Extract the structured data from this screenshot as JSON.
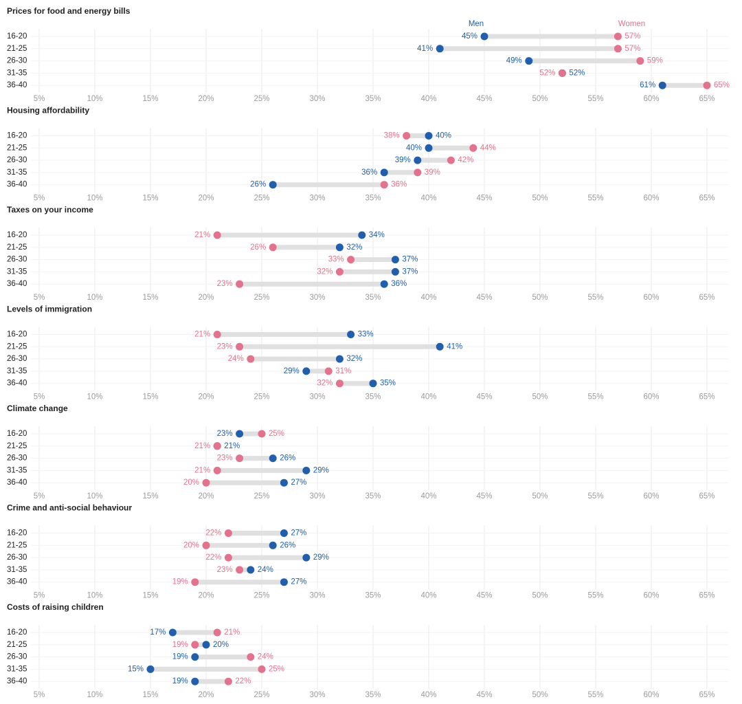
{
  "chart_data": [
    {
      "type": "dumbbell",
      "title": "Prices for food and energy bills",
      "categories": [
        "16-20",
        "21-25",
        "26-30",
        "31-35",
        "36-40"
      ],
      "series": [
        {
          "name": "Men",
          "color": "#1f5fad",
          "values": [
            45,
            41,
            49,
            52,
            61
          ],
          "value_labels": [
            "45%",
            "41%",
            "49%",
            "52%",
            "61%"
          ]
        },
        {
          "name": "Women",
          "color": "#e5728c",
          "values": [
            57,
            57,
            59,
            52,
            65
          ],
          "value_labels": [
            "57%",
            "57%",
            "59%",
            "52%",
            "65%"
          ]
        }
      ],
      "xlim": [
        5,
        65
      ],
      "xticks": [
        {
          "value": 5,
          "label": "5%"
        },
        {
          "value": 10,
          "label": "10%"
        },
        {
          "value": 15,
          "label": "15%"
        },
        {
          "value": 20,
          "label": "20%"
        },
        {
          "value": 25,
          "label": "25%"
        },
        {
          "value": 30,
          "label": "30%"
        },
        {
          "value": 35,
          "label": "35%"
        },
        {
          "value": 40,
          "label": "40%"
        },
        {
          "value": 45,
          "label": "45%"
        },
        {
          "value": 50,
          "label": "50%"
        },
        {
          "value": 55,
          "label": "55%"
        },
        {
          "value": 60,
          "label": "60%"
        },
        {
          "value": 65,
          "label": "65%"
        }
      ],
      "grid": true
    },
    {
      "type": "dumbbell",
      "title": "Housing affordability",
      "categories": [
        "16-20",
        "21-25",
        "26-30",
        "31-35",
        "36-40"
      ],
      "series": [
        {
          "color": "#1f5fad",
          "values": [
            40,
            40,
            39,
            36,
            26
          ],
          "value_labels": [
            "40%",
            "40%",
            "39%",
            "36%",
            "26%"
          ]
        },
        {
          "color": "#e5728c",
          "values": [
            38,
            44,
            42,
            39,
            36
          ],
          "value_labels": [
            "38%",
            "44%",
            "42%",
            "39%",
            "36%"
          ]
        }
      ],
      "xlim": [
        5,
        65
      ],
      "xticks": [
        {
          "value": 5,
          "label": "5%"
        },
        {
          "value": 10,
          "label": "10%"
        },
        {
          "value": 15,
          "label": "15%"
        },
        {
          "value": 20,
          "label": "20%"
        },
        {
          "value": 25,
          "label": "25%"
        },
        {
          "value": 30,
          "label": "30%"
        },
        {
          "value": 35,
          "label": "35%"
        },
        {
          "value": 40,
          "label": "40%"
        },
        {
          "value": 45,
          "label": "45%"
        },
        {
          "value": 50,
          "label": "50%"
        },
        {
          "value": 55,
          "label": "55%"
        },
        {
          "value": 60,
          "label": "60%"
        },
        {
          "value": 65,
          "label": "65%"
        }
      ],
      "grid": true
    },
    {
      "type": "dumbbell",
      "title": "Taxes on your income",
      "categories": [
        "16-20",
        "21-25",
        "26-30",
        "31-35",
        "36-40"
      ],
      "series": [
        {
          "color": "#1f5fad",
          "values": [
            34,
            32,
            37,
            37,
            36
          ],
          "value_labels": [
            "34%",
            "32%",
            "37%",
            "37%",
            "36%"
          ]
        },
        {
          "color": "#e5728c",
          "values": [
            21,
            26,
            33,
            32,
            23
          ],
          "value_labels": [
            "21%",
            "26%",
            "33%",
            "32%",
            "23%"
          ]
        }
      ],
      "xlim": [
        5,
        65
      ],
      "xticks": [
        {
          "value": 5,
          "label": "5%"
        },
        {
          "value": 10,
          "label": "10%"
        },
        {
          "value": 15,
          "label": "15%"
        },
        {
          "value": 20,
          "label": "20%"
        },
        {
          "value": 25,
          "label": "25%"
        },
        {
          "value": 30,
          "label": "30%"
        },
        {
          "value": 35,
          "label": "35%"
        },
        {
          "value": 40,
          "label": "40%"
        },
        {
          "value": 45,
          "label": "45%"
        },
        {
          "value": 50,
          "label": "50%"
        },
        {
          "value": 55,
          "label": "55%"
        },
        {
          "value": 60,
          "label": "60%"
        },
        {
          "value": 65,
          "label": "65%"
        }
      ],
      "grid": true
    },
    {
      "type": "dumbbell",
      "title": "Levels of immigration",
      "categories": [
        "16-20",
        "21-25",
        "26-30",
        "31-35",
        "36-40"
      ],
      "series": [
        {
          "color": "#1f5fad",
          "values": [
            33,
            41,
            32,
            29,
            35
          ],
          "value_labels": [
            "33%",
            "41%",
            "32%",
            "29%",
            "35%"
          ]
        },
        {
          "color": "#e5728c",
          "values": [
            21,
            23,
            24,
            31,
            32
          ],
          "value_labels": [
            "21%",
            "23%",
            "24%",
            "31%",
            "32%"
          ]
        }
      ],
      "xlim": [
        5,
        65
      ],
      "xticks": [
        {
          "value": 5,
          "label": "5%"
        },
        {
          "value": 10,
          "label": "10%"
        },
        {
          "value": 15,
          "label": "15%"
        },
        {
          "value": 20,
          "label": "20%"
        },
        {
          "value": 25,
          "label": "25%"
        },
        {
          "value": 30,
          "label": "30%"
        },
        {
          "value": 35,
          "label": "35%"
        },
        {
          "value": 40,
          "label": "40%"
        },
        {
          "value": 45,
          "label": "45%"
        },
        {
          "value": 50,
          "label": "50%"
        },
        {
          "value": 55,
          "label": "55%"
        },
        {
          "value": 60,
          "label": "60%"
        },
        {
          "value": 65,
          "label": "65%"
        }
      ],
      "grid": true
    },
    {
      "type": "dumbbell",
      "title": "Climate change",
      "categories": [
        "16-20",
        "21-25",
        "26-30",
        "31-35",
        "36-40"
      ],
      "series": [
        {
          "color": "#1f5fad",
          "values": [
            23,
            21,
            26,
            29,
            27
          ],
          "value_labels": [
            "23%",
            "21%",
            "26%",
            "29%",
            "27%"
          ]
        },
        {
          "color": "#e5728c",
          "values": [
            25,
            21,
            23,
            21,
            20
          ],
          "value_labels": [
            "25%",
            "21%",
            "23%",
            "21%",
            "20%"
          ]
        }
      ],
      "xlim": [
        5,
        65
      ],
      "xticks": [
        {
          "value": 5,
          "label": "5%"
        },
        {
          "value": 10,
          "label": "10%"
        },
        {
          "value": 15,
          "label": "15%"
        },
        {
          "value": 20,
          "label": "20%"
        },
        {
          "value": 25,
          "label": "25%"
        },
        {
          "value": 30,
          "label": "30%"
        },
        {
          "value": 35,
          "label": "35%"
        },
        {
          "value": 40,
          "label": "40%"
        },
        {
          "value": 45,
          "label": "45%"
        },
        {
          "value": 50,
          "label": "50%"
        },
        {
          "value": 55,
          "label": "55%"
        },
        {
          "value": 60,
          "label": "60%"
        },
        {
          "value": 65,
          "label": "65%"
        }
      ],
      "grid": true
    },
    {
      "type": "dumbbell",
      "title": "Crime and anti-social behaviour",
      "categories": [
        "16-20",
        "21-25",
        "26-30",
        "31-35",
        "36-40"
      ],
      "series": [
        {
          "color": "#1f5fad",
          "values": [
            27,
            26,
            29,
            24,
            27
          ],
          "value_labels": [
            "27%",
            "26%",
            "29%",
            "24%",
            "27%"
          ]
        },
        {
          "color": "#e5728c",
          "values": [
            22,
            20,
            22,
            23,
            19
          ],
          "value_labels": [
            "22%",
            "20%",
            "22%",
            "23%",
            "19%"
          ]
        }
      ],
      "xlim": [
        5,
        65
      ],
      "xticks": [
        {
          "value": 5,
          "label": "5%"
        },
        {
          "value": 10,
          "label": "10%"
        },
        {
          "value": 15,
          "label": "15%"
        },
        {
          "value": 20,
          "label": "20%"
        },
        {
          "value": 25,
          "label": "25%"
        },
        {
          "value": 30,
          "label": "30%"
        },
        {
          "value": 35,
          "label": "35%"
        },
        {
          "value": 40,
          "label": "40%"
        },
        {
          "value": 45,
          "label": "45%"
        },
        {
          "value": 50,
          "label": "50%"
        },
        {
          "value": 55,
          "label": "55%"
        },
        {
          "value": 60,
          "label": "60%"
        },
        {
          "value": 65,
          "label": "65%"
        }
      ],
      "grid": true
    },
    {
      "type": "dumbbell",
      "title": "Costs of raising children",
      "categories": [
        "16-20",
        "21-25",
        "26-30",
        "31-35",
        "36-40"
      ],
      "series": [
        {
          "color": "#1f5fad",
          "values": [
            17,
            20,
            19,
            15,
            19
          ],
          "value_labels": [
            "17%",
            "20%",
            "19%",
            "15%",
            "19%"
          ]
        },
        {
          "color": "#e5728c",
          "values": [
            21,
            19,
            24,
            25,
            22
          ],
          "value_labels": [
            "21%",
            "19%",
            "24%",
            "25%",
            "22%"
          ]
        }
      ],
      "xlim": [
        5,
        65
      ],
      "xticks": [
        {
          "value": 5,
          "label": "5%"
        },
        {
          "value": 10,
          "label": "10%"
        },
        {
          "value": 15,
          "label": "15%"
        },
        {
          "value": 20,
          "label": "20%"
        },
        {
          "value": 25,
          "label": "25%"
        },
        {
          "value": 30,
          "label": "30%"
        },
        {
          "value": 35,
          "label": "35%"
        },
        {
          "value": 40,
          "label": "40%"
        },
        {
          "value": 45,
          "label": "45%"
        },
        {
          "value": 50,
          "label": "50%"
        },
        {
          "value": 55,
          "label": "55%"
        },
        {
          "value": 60,
          "label": "60%"
        },
        {
          "value": 65,
          "label": "65%"
        }
      ],
      "grid": true
    }
  ]
}
